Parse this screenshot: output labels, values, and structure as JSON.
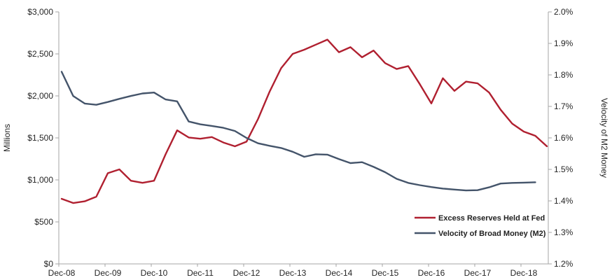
{
  "chart_data": {
    "type": "line",
    "title": "",
    "grid": false,
    "background": "#ffffff",
    "axis_line_color": "#A6A6A6",
    "categories": [
      "Dec-08",
      "Mar-09",
      "Jun-09",
      "Sep-09",
      "Dec-09",
      "Mar-10",
      "Jun-10",
      "Sep-10",
      "Dec-10",
      "Mar-11",
      "Jun-11",
      "Sep-11",
      "Dec-11",
      "Mar-12",
      "Jun-12",
      "Sep-12",
      "Dec-12",
      "Mar-13",
      "Jun-13",
      "Sep-13",
      "Dec-13",
      "Mar-14",
      "Jun-14",
      "Sep-14",
      "Dec-14",
      "Mar-15",
      "Jun-15",
      "Sep-15",
      "Dec-15",
      "Mar-16",
      "Jun-16",
      "Sep-16",
      "Dec-16",
      "Mar-17",
      "Jun-17",
      "Sep-17",
      "Dec-17",
      "Mar-18",
      "Jun-18",
      "Sep-18",
      "Dec-18",
      "Mar-19",
      "Jun-19"
    ],
    "series": [
      {
        "id": "excess-reserves",
        "name": "Excess Reserves Held at Fed",
        "axis": "left",
        "color": "#B02030",
        "values": [
          775,
          725,
          745,
          800,
          1080,
          1125,
          990,
          965,
          990,
          1305,
          1590,
          1505,
          1490,
          1510,
          1445,
          1400,
          1455,
          1725,
          2050,
          2330,
          2500,
          2550,
          2610,
          2670,
          2520,
          2580,
          2460,
          2540,
          2390,
          2320,
          2355,
          2140,
          1910,
          2210,
          2060,
          2170,
          2150,
          2040,
          1835,
          1670,
          1575,
          1525,
          1400
        ]
      },
      {
        "id": "m2-velocity",
        "name": "Velocity of Broad Money (M2)",
        "axis": "right",
        "color": "#44546A",
        "values": [
          1.81,
          1.733,
          1.709,
          1.705,
          1.714,
          1.724,
          1.733,
          1.741,
          1.744,
          1.722,
          1.716,
          1.652,
          1.643,
          1.638,
          1.632,
          1.622,
          1.6,
          1.583,
          1.575,
          1.568,
          1.556,
          1.54,
          1.548,
          1.547,
          1.533,
          1.52,
          1.523,
          1.508,
          1.491,
          1.47,
          1.457,
          1.45,
          1.444,
          1.439,
          1.436,
          1.433,
          1.434,
          1.443,
          1.455,
          1.457,
          1.458,
          1.459,
          null
        ]
      }
    ],
    "left_axis": {
      "title": "Millions",
      "min": 0,
      "max": 3000,
      "tick_values": [
        0,
        500,
        1000,
        1500,
        2000,
        2500,
        3000
      ],
      "tick_labels": [
        "$0",
        "$500",
        "$1,000",
        "$1,500",
        "$2,000",
        "$2,500",
        "$3,000"
      ]
    },
    "right_axis": {
      "title": "Velocity of M2 Money",
      "min": 1.2,
      "max": 2.0,
      "tick_values": [
        1.2,
        1.3,
        1.4,
        1.5,
        1.6,
        1.7,
        1.8,
        1.9,
        2.0
      ],
      "tick_labels": [
        "1.2%",
        "1.3%",
        "1.4%",
        "1.5%",
        "1.6%",
        "1.7%",
        "1.8%",
        "1.9%",
        "2.0%"
      ]
    },
    "x_axis": {
      "tick_labels": [
        "Dec-08",
        "Dec-09",
        "Dec-10",
        "Dec-11",
        "Dec-12",
        "Dec-13",
        "Dec-14",
        "Dec-15",
        "Dec-16",
        "Dec-17",
        "Dec-18"
      ],
      "tick_indices": [
        0,
        4,
        8,
        12,
        16,
        20,
        24,
        28,
        32,
        36,
        40
      ]
    },
    "legend_position": "inside-bottom-right",
    "text_color": "#262626"
  }
}
